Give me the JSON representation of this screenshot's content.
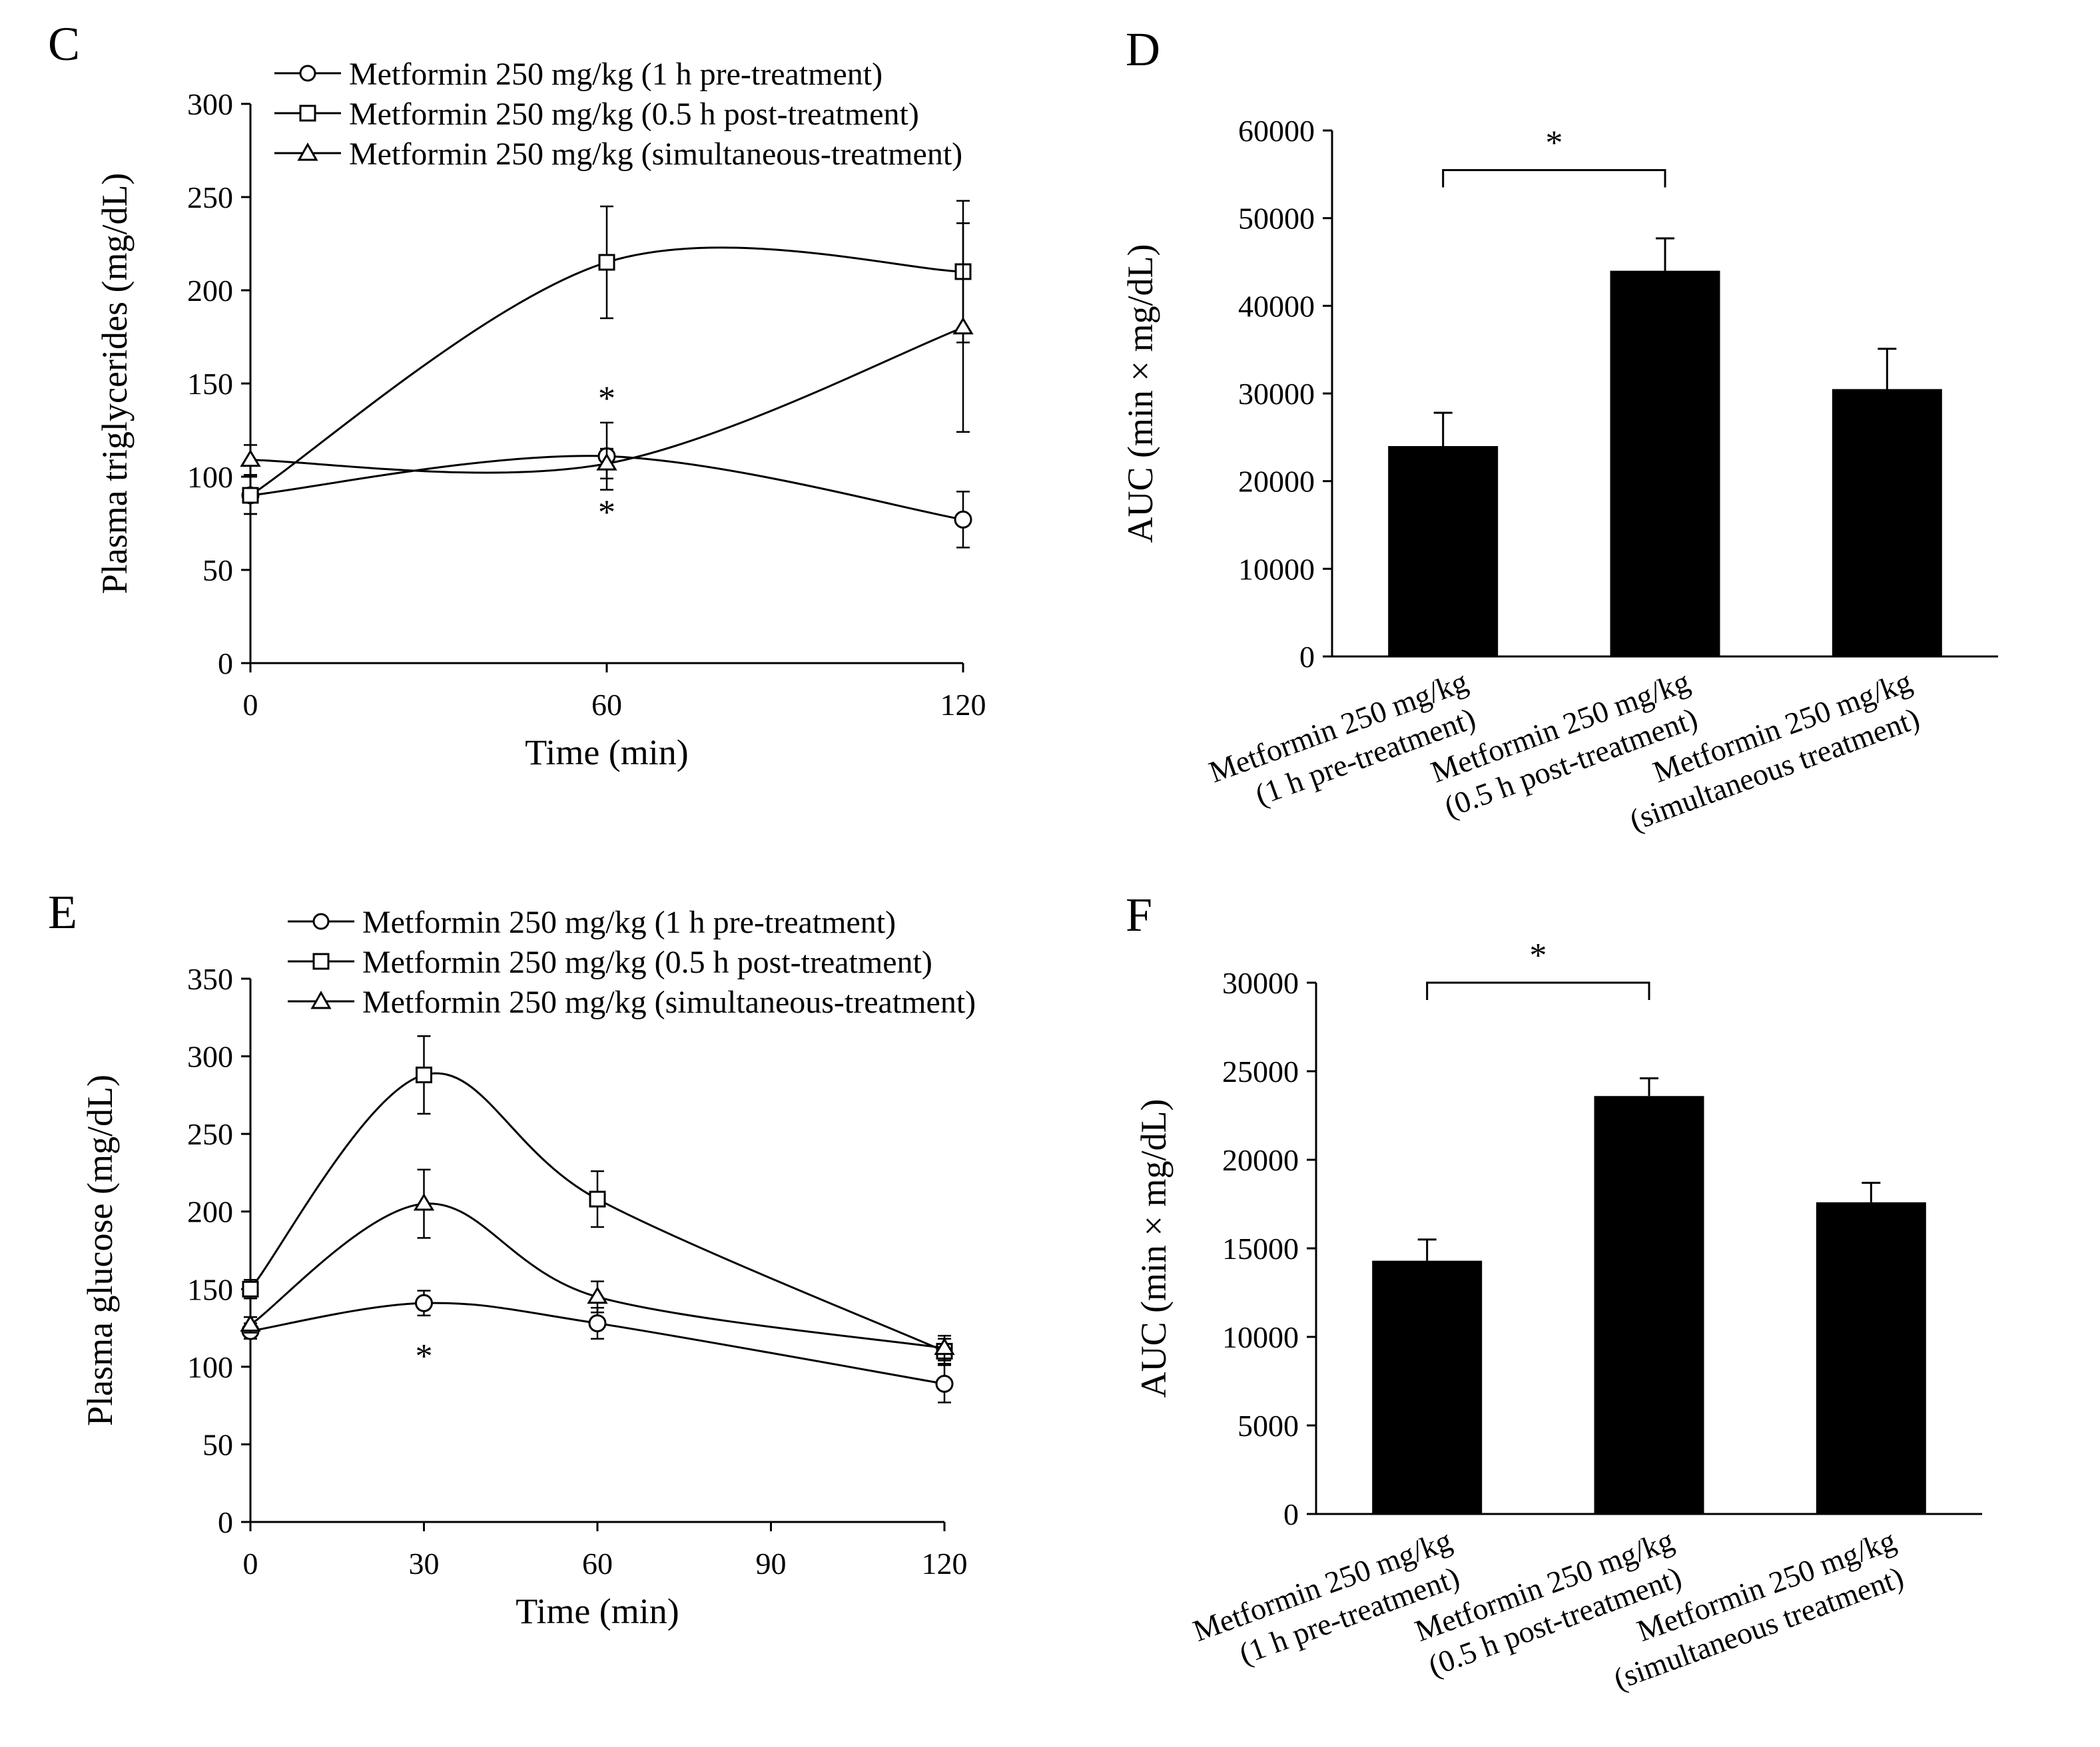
{
  "chart_data": [
    {
      "panel": "C",
      "type": "line",
      "xlabel": "Time (min)",
      "ylabel": "Plasma triglycerides (mg/dL)",
      "xlim": [
        0,
        120
      ],
      "ylim": [
        0,
        300
      ],
      "xticks": [
        0,
        60,
        120
      ],
      "yticks": [
        0,
        50,
        100,
        150,
        200,
        250,
        300
      ],
      "legend_position": "top",
      "series": [
        {
          "name": "Metformin 250 mg/kg (1 h pre-treatment)",
          "marker": "circle",
          "x": [
            0,
            60,
            120
          ],
          "y": [
            90,
            111,
            77
          ],
          "err": [
            10,
            18,
            15
          ]
        },
        {
          "name": "Metformin 250 mg/kg (0.5 h post-treatment)",
          "marker": "square",
          "x": [
            0,
            60,
            120
          ],
          "y": [
            90,
            215,
            210
          ],
          "err": [
            10,
            30,
            38
          ]
        },
        {
          "name": "Metformin 250 mg/kg (simultaneous-treatment)",
          "marker": "triangle",
          "x": [
            0,
            60,
            120
          ],
          "y": [
            109,
            107,
            180
          ],
          "err": [
            8,
            8,
            56
          ]
        }
      ],
      "annotations": [
        {
          "text": "*",
          "x": 60,
          "y": 143
        },
        {
          "text": "*",
          "x": 60,
          "y": 82
        }
      ]
    },
    {
      "panel": "D",
      "type": "bar",
      "ylabel": "AUC (min × mg/dL)",
      "ylim": [
        0,
        60000
      ],
      "yticks": [
        0,
        10000,
        20000,
        30000,
        40000,
        50000,
        60000
      ],
      "categories": [
        [
          "Metformin 250 mg/kg",
          "(1 h pre-treatment)"
        ],
        [
          "Metformin  250 mg/kg",
          "(0.5 h post-treatment)"
        ],
        [
          "Metformin  250 mg/kg",
          "(simultaneous treatment)"
        ]
      ],
      "values": [
        24000,
        44000,
        30500
      ],
      "err": [
        3800,
        3700,
        4600
      ],
      "significance": {
        "from": 0,
        "to": 1,
        "text": "*",
        "y": 57000
      }
    },
    {
      "panel": "E",
      "type": "line",
      "xlabel": "Time (min)",
      "ylabel": "Plasma glucose (mg/dL)",
      "xlim": [
        0,
        120
      ],
      "ylim": [
        0,
        350
      ],
      "xticks": [
        0,
        30,
        60,
        90,
        120
      ],
      "yticks": [
        0,
        50,
        100,
        150,
        200,
        250,
        300,
        350
      ],
      "legend_position": "top",
      "series": [
        {
          "name": "Metformin 250 mg/kg (1 h pre-treatment)",
          "marker": "circle",
          "x": [
            0,
            30,
            60,
            120
          ],
          "y": [
            123,
            141,
            128,
            89
          ],
          "err": [
            5,
            8,
            10,
            12
          ]
        },
        {
          "name": "Metformin 250 mg/kg (0.5 h post-treatment)",
          "marker": "square",
          "x": [
            0,
            30,
            60,
            120
          ],
          "y": [
            150,
            288,
            208,
            110
          ],
          "err": [
            6,
            25,
            18,
            8
          ]
        },
        {
          "name": "Metformin 250 mg/kg (simultaneous-treatment)",
          "marker": "triangle",
          "x": [
            0,
            30,
            60,
            120
          ],
          "y": [
            127,
            205,
            145,
            112
          ],
          "err": [
            5,
            22,
            10,
            8
          ]
        }
      ],
      "annotations": [
        {
          "text": "*",
          "x": 30,
          "y": 108
        }
      ]
    },
    {
      "panel": "F",
      "type": "bar",
      "ylabel": "AUC (min × mg/dL)",
      "ylim": [
        0,
        30000
      ],
      "yticks": [
        0,
        5000,
        10000,
        15000,
        20000,
        25000,
        30000
      ],
      "categories": [
        [
          "Metformin 250 mg/kg",
          "(1 h pre-treatment)"
        ],
        [
          "Metformin 250 mg/kg",
          "(0.5 h post-treatment)"
        ],
        [
          "Metformin 250 mg/kg",
          "(simultaneous treatment)"
        ]
      ],
      "values": [
        14300,
        23600,
        17600
      ],
      "err": [
        1200,
        1000,
        1100
      ],
      "significance": {
        "from": 0,
        "to": 1,
        "text": "*",
        "y": 30000
      }
    }
  ]
}
